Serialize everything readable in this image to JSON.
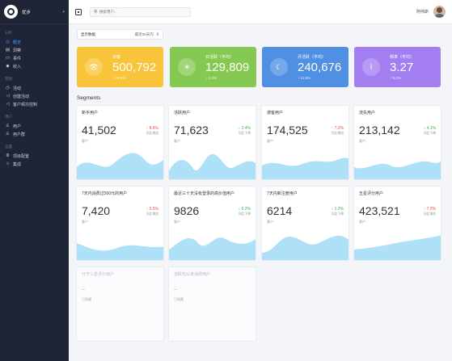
{
  "sidebar": {
    "project": "优步",
    "sections": [
      {
        "title": "分析",
        "items": [
          {
            "icon": "◎",
            "label": "概览",
            "active": true
          },
          {
            "icon": "▤",
            "label": "洞察",
            "active": false
          },
          {
            "icon": "▭",
            "label": "事件",
            "active": false
          },
          {
            "icon": "◆",
            "label": "收入",
            "active": false
          }
        ]
      },
      {
        "title": "营销",
        "items": [
          {
            "icon": "◷",
            "label": "活动",
            "active": false
          },
          {
            "icon": "◁",
            "label": "创建活动",
            "active": false
          },
          {
            "icon": "◁",
            "label": "客户频次控制",
            "active": false
          }
        ]
      },
      {
        "title": "用户",
        "items": [
          {
            "icon": "♙",
            "label": "用户",
            "active": false
          },
          {
            "icon": "♙",
            "label": "用户群",
            "active": false
          }
        ]
      },
      {
        "title": "设置",
        "items": [
          {
            "icon": "⚙",
            "label": "项目配置",
            "active": false
          },
          {
            "icon": "⊹",
            "label": "集成",
            "active": false
          }
        ]
      }
    ]
  },
  "topbar": {
    "search_placeholder": "搜索用户...",
    "username": "阿伟斯"
  },
  "filter": {
    "label": "显示数据",
    "value": "最近30天内"
  },
  "stats": [
    {
      "icon": "👁",
      "title": "访客",
      "value": "500,792",
      "sub": "↑ 28.2%",
      "color": "#f8c43a"
    },
    {
      "icon": "☀",
      "title": "日活跃（平均）",
      "value": "129,809",
      "sub": "↑ 2.2%",
      "color": "#86c952"
    },
    {
      "icon": "☾",
      "title": "月活跃（平均）",
      "value": "240,676",
      "sub": "↑ 13.9%",
      "color": "#4f90e2"
    },
    {
      "icon": "⌇",
      "title": "频率（平均）",
      "value": "3.27",
      "sub": "↑ 5.2%",
      "color": "#a37ef0"
    }
  ],
  "segments_title": "Segments",
  "segments": [
    {
      "title": "新手用户",
      "value": "41,502",
      "note": "客户",
      "delta": "↑ 8.6%",
      "delta_dir": "up",
      "delta_sub": "同比增加"
    },
    {
      "title": "活跃用户",
      "value": "71,623",
      "note": "客户",
      "delta": "↓ 2.4%",
      "delta_dir": "down",
      "delta_sub": "同比下降"
    },
    {
      "title": "游客用户",
      "value": "174,525",
      "note": "客户",
      "delta": "↑ 7.2%",
      "delta_dir": "up",
      "delta_sub": "同比增加"
    },
    {
      "title": "流失用户",
      "value": "213,142",
      "note": "客户",
      "delta": "↓ 4.1%",
      "delta_dir": "down",
      "delta_sub": "同比下降"
    },
    {
      "title": "7天内消费过500元的用户",
      "value": "7,420",
      "note": "客户",
      "delta": "↑ 5.5%",
      "delta_dir": "up",
      "delta_sub": "同比增加"
    },
    {
      "title": "最近三十天没有登录的高价值用户",
      "value": "9826",
      "note": "客户",
      "delta": "↓ 0.2%",
      "delta_dir": "down",
      "delta_sub": "同比下降"
    },
    {
      "title": "7天内新注册用户",
      "value": "6214",
      "note": "客户",
      "delta": "↓ 1.2%",
      "delta_dir": "down",
      "delta_sub": "同比下降"
    },
    {
      "title": "五星评分用户",
      "value": "423,521",
      "note": "客户",
      "delta": "↑ 7.2%",
      "delta_dir": "up",
      "delta_sub": "同比增加"
    }
  ],
  "empty_segments": [
    {
      "title": "分于三星评分用户",
      "dash": "--",
      "sub": "已隐藏"
    },
    {
      "title": "流跃但从未消费用户",
      "dash": "--",
      "sub": "已隐藏"
    }
  ],
  "colors": {
    "wave": "#aee0f7",
    "sidebar": "#1f2536",
    "active": "#3aa0ff"
  }
}
